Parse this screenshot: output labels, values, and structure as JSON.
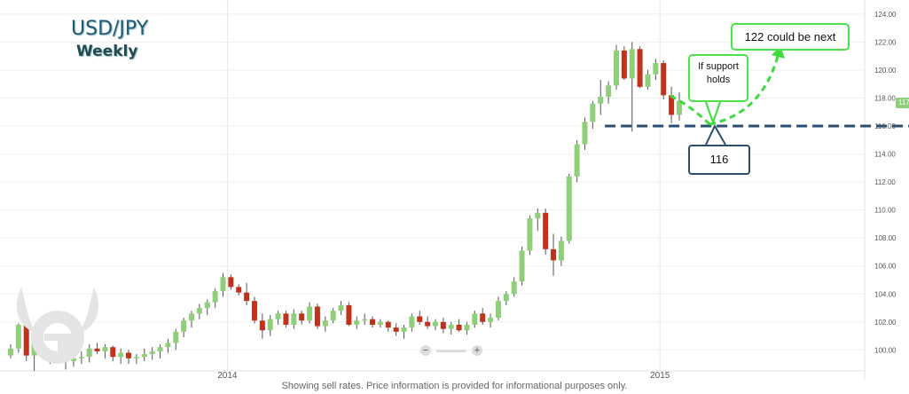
{
  "title": "USD/JPY",
  "subtitle": "Weekly",
  "footer": "Showing sell rates. Price information is provided for informational purposes only.",
  "annotations": {
    "target": "122 could be next",
    "support_note": "If support holds",
    "support_level": "116"
  },
  "zoom": {
    "minus": "−",
    "plus": "+"
  },
  "colors": {
    "up": "#8fcf7a",
    "down": "#c0321b",
    "support": "#2b4d6e",
    "arrow": "#3ddc3d"
  },
  "chart_data": {
    "type": "candlestick",
    "x_ticks": [
      "2014",
      "2015"
    ],
    "y_ticks": [
      "124.00",
      "122.00",
      "120.00",
      "118.00",
      "116.00",
      "114.00",
      "112.00",
      "110.00",
      "108.00",
      "106.00",
      "104.00",
      "102.00",
      "100.00"
    ],
    "ylim": [
      98.5,
      124.5
    ],
    "last_price": "117.75",
    "support": 116,
    "target": 122,
    "ohlc": [
      [
        99.6,
        100.4,
        99.4,
        100.1
      ],
      [
        100.1,
        101.9,
        99.8,
        101.8
      ],
      [
        101.8,
        102.0,
        99.2,
        99.6
      ],
      [
        99.6,
        101.6,
        98.5,
        101.3
      ],
      [
        101.3,
        101.6,
        99.6,
        99.7
      ],
      [
        99.7,
        100.0,
        99.0,
        99.9
      ],
      [
        99.9,
        100.2,
        99.2,
        99.4
      ],
      [
        99.4,
        99.6,
        98.6,
        99.2
      ],
      [
        99.2,
        99.6,
        98.8,
        99.4
      ],
      [
        99.4,
        99.9,
        99.0,
        99.5
      ],
      [
        99.5,
        100.4,
        99.1,
        100.1
      ],
      [
        100.1,
        100.5,
        99.7,
        99.9
      ],
      [
        99.9,
        100.4,
        99.4,
        100.2
      ],
      [
        100.2,
        100.3,
        99.2,
        99.5
      ],
      [
        99.5,
        100.1,
        99.0,
        99.8
      ],
      [
        99.8,
        100.0,
        99.0,
        99.4
      ],
      [
        99.4,
        99.7,
        99.0,
        99.5
      ],
      [
        99.5,
        100.1,
        99.2,
        99.7
      ],
      [
        99.7,
        100.2,
        99.3,
        99.9
      ],
      [
        99.9,
        100.4,
        99.4,
        100.2
      ],
      [
        100.2,
        100.8,
        99.8,
        100.5
      ],
      [
        100.5,
        101.5,
        100.0,
        101.3
      ],
      [
        101.3,
        102.3,
        100.9,
        102.1
      ],
      [
        102.1,
        102.8,
        101.6,
        102.6
      ],
      [
        102.6,
        103.3,
        102.2,
        103.0
      ],
      [
        103.0,
        103.6,
        102.5,
        103.4
      ],
      [
        103.4,
        104.4,
        103.0,
        104.2
      ],
      [
        104.2,
        105.5,
        103.8,
        105.2
      ],
      [
        105.2,
        105.4,
        104.3,
        104.5
      ],
      [
        104.5,
        104.7,
        103.9,
        104.1
      ],
      [
        104.1,
        104.8,
        103.2,
        103.5
      ],
      [
        103.5,
        103.8,
        101.9,
        102.1
      ],
      [
        102.1,
        102.6,
        100.8,
        101.4
      ],
      [
        101.4,
        102.5,
        101.0,
        102.2
      ],
      [
        102.2,
        102.8,
        101.8,
        102.6
      ],
      [
        102.6,
        102.8,
        101.6,
        101.8
      ],
      [
        101.8,
        102.9,
        101.5,
        102.6
      ],
      [
        102.6,
        102.8,
        101.8,
        102.1
      ],
      [
        102.1,
        103.4,
        101.9,
        103.1
      ],
      [
        103.1,
        103.3,
        101.5,
        101.7
      ],
      [
        101.7,
        102.4,
        101.3,
        102.1
      ],
      [
        102.1,
        103.0,
        101.9,
        102.8
      ],
      [
        102.8,
        103.5,
        102.5,
        103.2
      ],
      [
        103.2,
        103.4,
        101.7,
        101.8
      ],
      [
        101.8,
        102.4,
        101.5,
        102.1
      ],
      [
        102.1,
        102.6,
        101.8,
        102.2
      ],
      [
        102.2,
        102.4,
        101.6,
        101.8
      ],
      [
        101.8,
        102.2,
        101.6,
        102.0
      ],
      [
        102.0,
        102.1,
        101.3,
        101.6
      ],
      [
        101.6,
        101.9,
        101.0,
        101.3
      ],
      [
        101.3,
        101.8,
        100.8,
        101.6
      ],
      [
        101.6,
        102.6,
        101.3,
        102.4
      ],
      [
        102.4,
        102.8,
        101.8,
        102.0
      ],
      [
        102.0,
        102.4,
        101.5,
        101.7
      ],
      [
        101.7,
        102.2,
        101.4,
        102.0
      ],
      [
        102.0,
        102.3,
        101.2,
        101.5
      ],
      [
        101.5,
        102.0,
        101.1,
        101.8
      ],
      [
        101.8,
        102.2,
        101.3,
        101.4
      ],
      [
        101.4,
        102.0,
        101.1,
        101.8
      ],
      [
        101.8,
        102.8,
        101.6,
        102.6
      ],
      [
        102.6,
        103.0,
        101.8,
        102.0
      ],
      [
        102.0,
        102.6,
        101.6,
        102.3
      ],
      [
        102.3,
        103.8,
        102.1,
        103.5
      ],
      [
        103.5,
        104.2,
        103.2,
        104.0
      ],
      [
        104.0,
        105.2,
        103.8,
        104.9
      ],
      [
        104.9,
        107.4,
        104.6,
        107.1
      ],
      [
        107.1,
        109.6,
        106.8,
        109.4
      ],
      [
        109.4,
        110.1,
        108.5,
        109.8
      ],
      [
        109.8,
        110.1,
        106.8,
        107.2
      ],
      [
        107.2,
        108.3,
        105.3,
        106.4
      ],
      [
        106.4,
        108.1,
        106.0,
        107.8
      ],
      [
        107.8,
        112.6,
        107.6,
        112.4
      ],
      [
        112.4,
        115.0,
        112.0,
        114.7
      ],
      [
        114.7,
        116.6,
        114.3,
        116.3
      ],
      [
        116.3,
        117.8,
        115.8,
        117.6
      ],
      [
        117.6,
        119.3,
        116.8,
        118.1
      ],
      [
        118.1,
        119.2,
        117.6,
        118.9
      ],
      [
        118.9,
        121.8,
        118.6,
        121.4
      ],
      [
        121.4,
        121.7,
        119.3,
        119.4
      ],
      [
        119.4,
        122.0,
        115.6,
        121.5
      ],
      [
        121.5,
        121.7,
        118.7,
        118.8
      ],
      [
        118.8,
        120.0,
        118.6,
        119.7
      ],
      [
        119.7,
        120.8,
        119.3,
        120.5
      ],
      [
        120.5,
        120.7,
        117.9,
        118.2
      ],
      [
        118.2,
        118.8,
        116.2,
        116.8
      ],
      [
        116.8,
        118.4,
        116.4,
        117.8
      ]
    ]
  }
}
